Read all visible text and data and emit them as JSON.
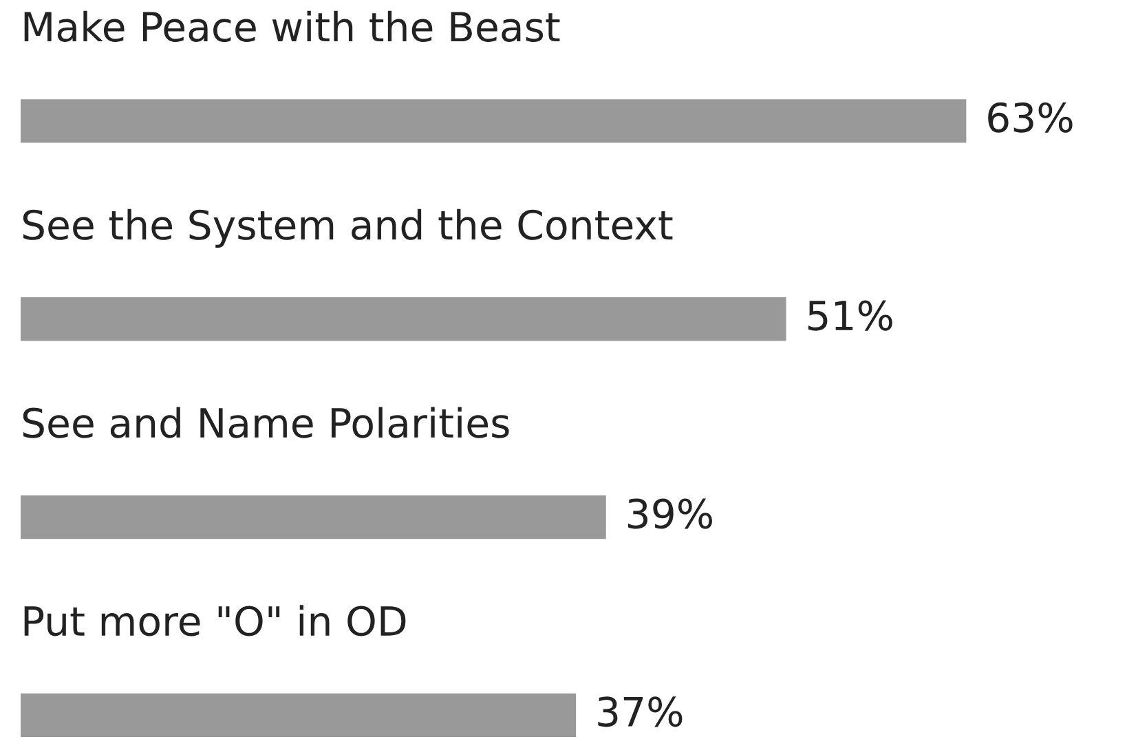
{
  "chart_data": {
    "type": "bar",
    "orientation": "horizontal",
    "categories": [
      "Make Peace with the Beast",
      "See the System and the Context",
      "See and Name Polarities",
      "Put more \"O\" in OD"
    ],
    "values": [
      63,
      51,
      39,
      37
    ],
    "value_labels": [
      "63%",
      "51%",
      "39%",
      "37%"
    ],
    "color": "#999999"
  }
}
